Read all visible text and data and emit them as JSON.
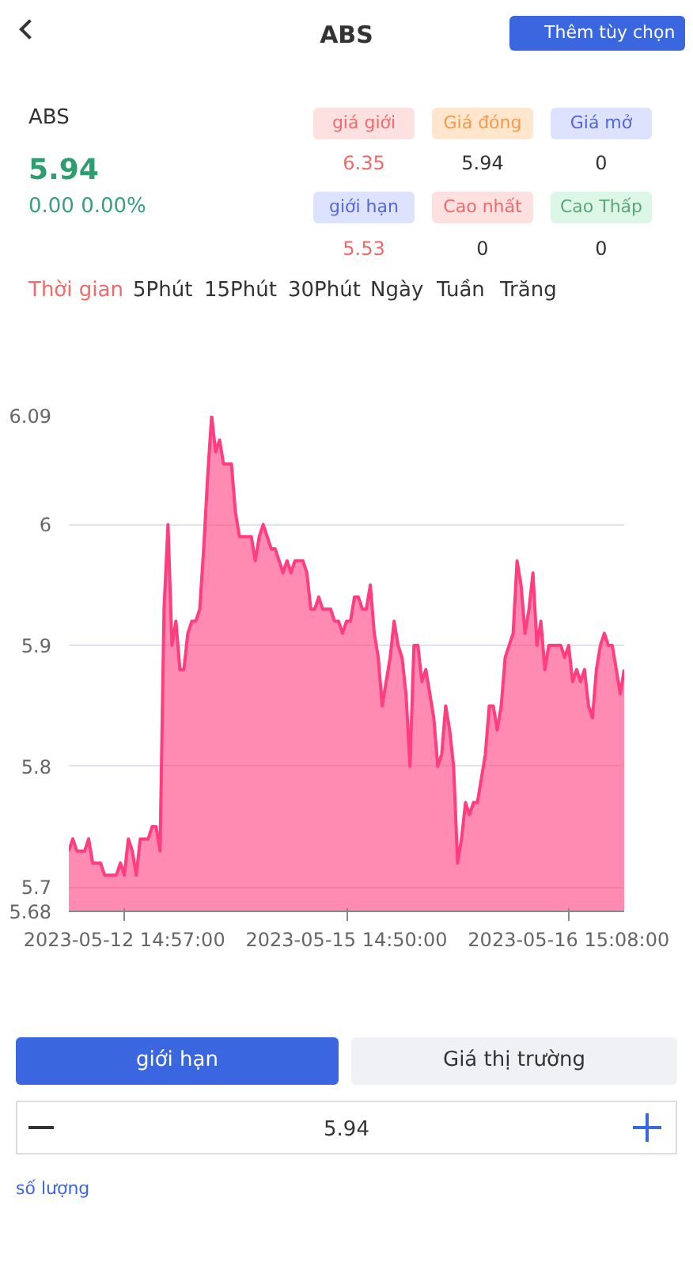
{
  "chart_data": {
    "type": "area",
    "title": "ABS",
    "annotations": [
      "Thêm tùy chọn",
      "ABS",
      "5.94",
      "0.00 0.00%",
      "giá giới",
      "Giá đóng",
      "Giá mở",
      "6.35",
      "5.94",
      "0",
      "giới hạn",
      "Cao nhất",
      "Cao Thấp",
      "5.53",
      "0",
      "0",
      "Thời gian",
      "5Phút",
      "15Phút",
      "30Phút",
      "Ngày",
      "Tuần",
      "Trăng",
      "giới hạn",
      "Giá thị trường",
      "5.94",
      "số lượng"
    ],
    "categories": [
      null,
      null,
      null,
      null,
      null,
      null,
      null,
      null,
      null,
      null,
      null,
      null,
      null,
      null,
      "2023-05-12 14:57:00",
      null,
      null,
      null,
      null,
      null,
      null,
      null,
      null,
      null,
      null,
      null,
      null,
      null,
      null,
      null,
      null,
      null,
      null,
      null,
      null,
      null,
      null,
      null,
      null,
      null,
      null,
      null,
      null,
      null,
      null,
      null,
      null,
      null,
      null,
      null,
      null,
      null,
      null,
      null,
      null,
      null,
      null,
      null,
      null,
      null,
      null,
      null,
      null,
      null,
      null,
      null,
      null,
      null,
      null,
      null,
      "2023-05-15 14:50:00",
      null,
      null,
      null,
      null,
      null,
      null,
      null,
      null,
      null,
      null,
      null,
      null,
      null,
      null,
      null,
      null,
      null,
      null,
      null,
      null,
      null,
      null,
      null,
      null,
      null,
      null,
      null,
      null,
      null,
      null,
      null,
      null,
      null,
      null,
      null,
      null,
      null,
      null,
      null,
      null,
      null,
      null,
      null,
      null,
      null,
      null,
      null,
      null,
      null,
      null,
      null,
      null,
      null,
      null,
      null,
      "2023-05-16 15:08:00",
      null,
      null,
      null,
      null,
      null,
      null,
      null,
      null,
      null,
      null,
      null,
      null,
      null,
      null
    ],
    "series": [
      {
        "color": "#ff3d7f",
        "values": [
          5.73,
          5.74,
          5.73,
          5.73,
          5.73,
          5.74,
          5.72,
          5.72,
          5.72,
          5.71,
          5.71,
          5.71,
          5.71,
          5.72,
          5.71,
          5.74,
          5.73,
          5.71,
          5.74,
          5.74,
          5.74,
          5.75,
          5.75,
          5.73,
          5.93,
          6.0,
          5.9,
          5.92,
          5.88,
          5.88,
          5.91,
          5.92,
          5.92,
          5.93,
          5.98,
          6.04,
          6.09,
          6.06,
          6.07,
          6.05,
          6.05,
          6.05,
          6.01,
          5.99,
          5.99,
          5.99,
          5.99,
          5.97,
          5.99,
          6.0,
          5.99,
          5.98,
          5.98,
          5.97,
          5.96,
          5.97,
          5.96,
          5.97,
          5.97,
          5.97,
          5.96,
          5.93,
          5.93,
          5.94,
          5.93,
          5.93,
          5.93,
          5.92,
          5.92,
          5.91,
          5.92,
          5.92,
          5.94,
          5.94,
          5.93,
          5.93,
          5.95,
          5.91,
          5.89,
          5.85,
          5.87,
          5.89,
          5.92,
          5.9,
          5.89,
          5.86,
          5.8,
          5.9,
          5.9,
          5.87,
          5.88,
          5.86,
          5.84,
          5.8,
          5.81,
          5.85,
          5.83,
          5.8,
          5.72,
          5.74,
          5.77,
          5.76,
          5.77,
          5.77,
          5.79,
          5.81,
          5.85,
          5.85,
          5.83,
          5.85,
          5.89,
          5.9,
          5.91,
          5.97,
          5.95,
          5.91,
          5.93,
          5.96,
          5.9,
          5.92,
          5.88,
          5.9,
          5.9,
          5.9,
          5.9,
          5.89,
          5.9,
          5.87,
          5.88,
          5.87,
          5.88,
          5.85,
          5.84,
          5.88,
          5.9,
          5.91,
          5.9,
          5.9,
          5.88,
          5.86,
          5.88
        ]
      }
    ],
    "ylim": [
      5.68,
      6.09
    ],
    "yticks": [
      5.68,
      5.7,
      5.8,
      5.9,
      6,
      6.09
    ],
    "grid": "y"
  }
}
